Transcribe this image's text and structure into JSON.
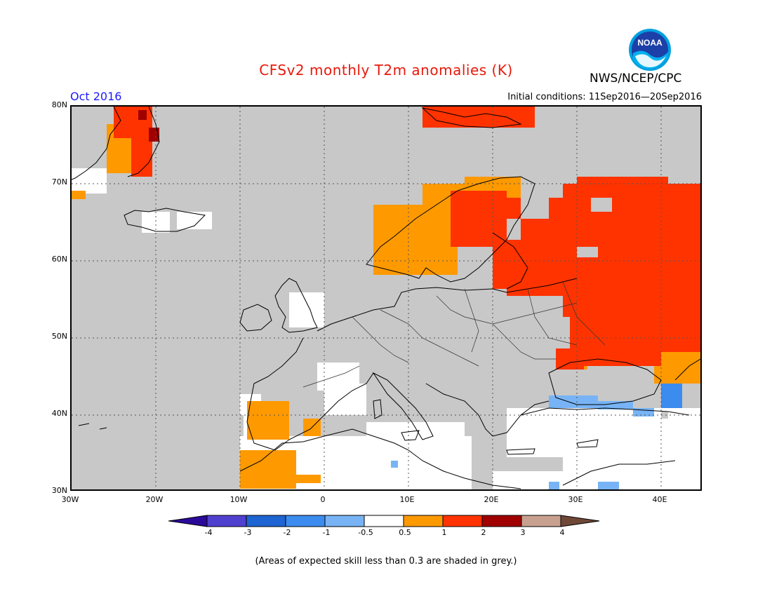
{
  "title": "CFSv2 monthly T2m anomalies (K)",
  "title_color": "#e8190b",
  "month_label": "Oct 2016",
  "month_color": "#1a1aff",
  "initial_conditions": "Initial conditions: 11Sep2016—20Sep2016",
  "agency": "NWS/NCEP/CPC",
  "logo_text": "NOAA",
  "footnote": "(Areas of expected skill less than 0.3 are shaded in grey.)",
  "lat_labels": [
    "80N",
    "70N",
    "60N",
    "50N",
    "40N",
    "30N"
  ],
  "lon_labels": [
    "30W",
    "20W",
    "10W",
    "0",
    "10E",
    "20E",
    "30E",
    "40E"
  ],
  "colorbar": {
    "bins": [
      {
        "range": "< -4",
        "color": "#2b0a9a"
      },
      {
        "range": "-4 to -3",
        "color": "#5040d0"
      },
      {
        "range": "-3 to -2",
        "color": "#1e64d2"
      },
      {
        "range": "-2 to -1",
        "color": "#3c8cf0"
      },
      {
        "range": "-1 to -0.5",
        "color": "#78b4f5"
      },
      {
        "range": "-0.5 to 0.5",
        "color": "#ffffff"
      },
      {
        "range": "0.5 to 1",
        "color": "#ff9900"
      },
      {
        "range": "1 to 2",
        "color": "#ff3300"
      },
      {
        "range": "2 to 3",
        "color": "#a00000"
      },
      {
        "range": "3 to 4",
        "color": "#c8a090"
      },
      {
        "range": "> 4",
        "color": "#704838"
      }
    ],
    "tick_labels": [
      "-4",
      "-3",
      "-2",
      "-1",
      "-0.5",
      "0.5",
      "1",
      "2",
      "3",
      "4"
    ]
  },
  "skill_mask_color": "#c8c8c8"
}
